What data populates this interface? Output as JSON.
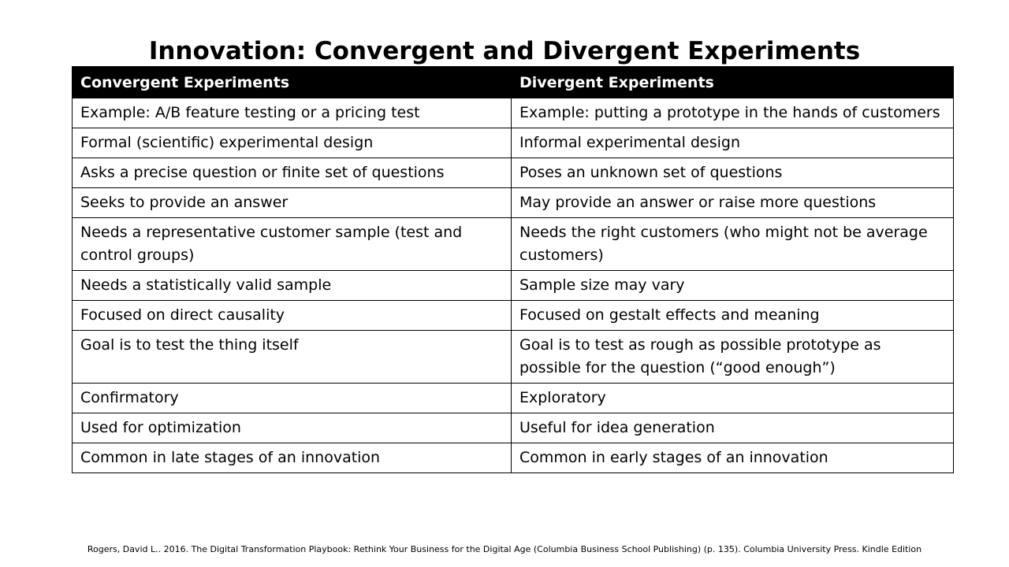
{
  "title": {
    "bold": "Innovation:",
    "rest": "Convergent and Divergent Experiments"
  },
  "table": {
    "headers": [
      "Convergent Experiments",
      "Divergent Experiments"
    ],
    "rows": [
      [
        "Example: A/B feature testing or a pricing test",
        "Example: putting a prototype in the hands of customers"
      ],
      [
        "Formal (scientific) experimental design",
        "Informal experimental design"
      ],
      [
        "Asks a precise question or finite set of questions",
        "Poses an unknown set of questions"
      ],
      [
        "Seeks to provide an answer",
        "May provide an answer or raise more questions"
      ],
      [
        "Needs a representative customer sample (test and control groups)",
        "Needs the right customers (who might not be average customers)"
      ],
      [
        "Needs a statistically valid sample",
        "Sample size may vary"
      ],
      [
        "Focused on direct causality",
        "Focused on gestalt effects and meaning"
      ],
      [
        "Goal is to test the thing itself",
        "Goal is to test as rough as possible prototype as possible for the question (“good enough”)"
      ],
      [
        "Confirmatory",
        "Exploratory"
      ],
      [
        "Used for optimization",
        "Useful for idea generation"
      ],
      [
        "Common in late stages of an innovation",
        "Common in early stages of an innovation"
      ]
    ]
  },
  "citation": "Rogers, David L.. 2016. The Digital Transformation Playbook: Rethink Your Business for the Digital Age (Columbia Business School Publishing) (p. 135). Columbia University Press. Kindle Edition"
}
